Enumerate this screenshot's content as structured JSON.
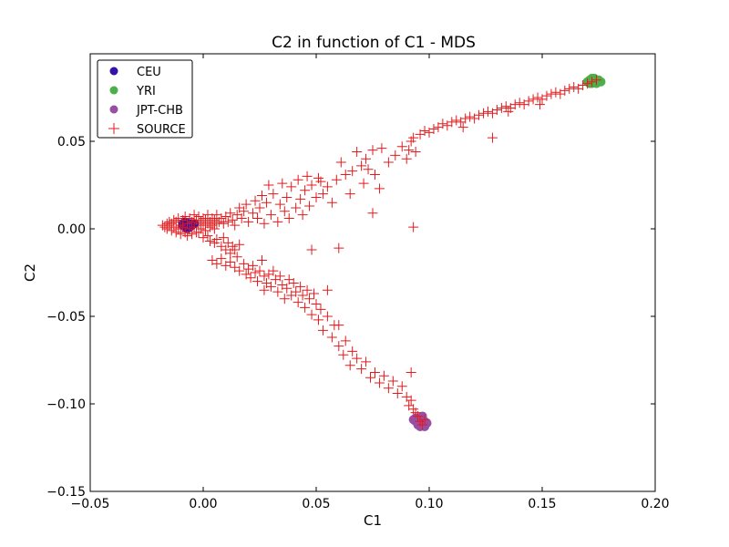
{
  "chart_data": {
    "type": "scatter",
    "title": "C2 in function of C1 - MDS",
    "xlabel": "C1",
    "ylabel": "C2",
    "xlim": [
      -0.05,
      0.2
    ],
    "ylim": [
      -0.15,
      0.1
    ],
    "xticks": [
      -0.05,
      0.0,
      0.05,
      0.1,
      0.15,
      0.2
    ],
    "xtick_labels": [
      "−0.05",
      "0.00",
      "0.05",
      "0.10",
      "0.15",
      "0.20"
    ],
    "yticks": [
      -0.15,
      -0.1,
      -0.05,
      0.0,
      0.05
    ],
    "ytick_labels": [
      "−0.15",
      "−0.10",
      "−0.05",
      "0.00",
      "0.05"
    ],
    "grid": false,
    "legend_position": "top-left",
    "series": [
      {
        "name": "CEU",
        "marker": "circle",
        "color": "#3311aa",
        "points": [
          [
            -0.009,
            0.003
          ],
          [
            -0.008,
            0.001
          ],
          [
            -0.007,
            0.002
          ],
          [
            -0.006,
            0.003
          ],
          [
            -0.008,
            0.004
          ],
          [
            -0.005,
            0.002
          ],
          [
            -0.007,
            0.0
          ],
          [
            -0.004,
            0.003
          ],
          [
            -0.009,
            0.002
          ],
          [
            -0.006,
            0.001
          ]
        ]
      },
      {
        "name": "YRI",
        "marker": "circle",
        "color": "#4daf4a",
        "points": [
          [
            0.17,
            0.084
          ],
          [
            0.171,
            0.085
          ],
          [
            0.172,
            0.083
          ],
          [
            0.173,
            0.086
          ],
          [
            0.174,
            0.084
          ],
          [
            0.175,
            0.085
          ],
          [
            0.176,
            0.084
          ],
          [
            0.172,
            0.086
          ],
          [
            0.174,
            0.083
          ],
          [
            0.173,
            0.085
          ],
          [
            0.171,
            0.083
          ]
        ]
      },
      {
        "name": "JPT-CHB",
        "marker": "circle",
        "color": "#984ea3",
        "points": [
          [
            0.093,
            -0.109
          ],
          [
            0.094,
            -0.11
          ],
          [
            0.095,
            -0.108
          ],
          [
            0.096,
            -0.111
          ],
          [
            0.097,
            -0.109
          ],
          [
            0.098,
            -0.11
          ],
          [
            0.099,
            -0.111
          ],
          [
            0.096,
            -0.113
          ],
          [
            0.098,
            -0.113
          ],
          [
            0.094,
            -0.108
          ],
          [
            0.097,
            -0.107
          ],
          [
            0.095,
            -0.112
          ]
        ]
      },
      {
        "name": "SOURCE",
        "marker": "plus",
        "color": "#e41a1c",
        "points": [
          [
            -0.018,
            0.002
          ],
          [
            -0.017,
            0.001
          ],
          [
            -0.016,
            0.003
          ],
          [
            -0.016,
            0.0
          ],
          [
            -0.015,
            0.002
          ],
          [
            -0.015,
            0.004
          ],
          [
            -0.014,
            -0.001
          ],
          [
            -0.014,
            0.003
          ],
          [
            -0.013,
            0.001
          ],
          [
            -0.013,
            0.005
          ],
          [
            -0.012,
            -0.002
          ],
          [
            -0.012,
            0.004
          ],
          [
            -0.011,
            0.0
          ],
          [
            -0.011,
            0.006
          ],
          [
            -0.01,
            0.002
          ],
          [
            -0.01,
            -0.003
          ],
          [
            -0.009,
            0.005
          ],
          [
            -0.009,
            0.001
          ],
          [
            -0.008,
            -0.002
          ],
          [
            -0.008,
            0.007
          ],
          [
            -0.007,
            0.003
          ],
          [
            -0.007,
            -0.004
          ],
          [
            -0.006,
            0.006
          ],
          [
            -0.006,
            0.0
          ],
          [
            -0.005,
            0.004
          ],
          [
            -0.005,
            -0.003
          ],
          [
            -0.004,
            0.008
          ],
          [
            -0.004,
            0.001
          ],
          [
            -0.003,
            0.005
          ],
          [
            -0.003,
            -0.002
          ],
          [
            -0.002,
            0.003
          ],
          [
            -0.002,
            0.007
          ],
          [
            -0.001,
            0.0
          ],
          [
            -0.001,
            0.004
          ],
          [
            0.0,
            0.006
          ],
          [
            0.0,
            0.002
          ],
          [
            0.001,
            -0.001
          ],
          [
            0.001,
            0.005
          ],
          [
            0.002,
            0.003
          ],
          [
            0.002,
            0.008
          ],
          [
            0.003,
            0.001
          ],
          [
            0.003,
            0.004
          ],
          [
            0.004,
            0.006
          ],
          [
            0.004,
            0.002
          ],
          [
            0.005,
            0.005
          ],
          [
            0.005,
            0.0
          ],
          [
            0.006,
            0.003
          ],
          [
            0.006,
            0.008
          ],
          [
            0.007,
            0.004
          ],
          [
            0.008,
            0.006
          ],
          [
            0.009,
            0.003
          ],
          [
            0.01,
            0.007
          ],
          [
            0.011,
            0.004
          ],
          [
            0.012,
            0.009
          ],
          [
            0.013,
            0.005
          ],
          [
            0.014,
            0.002
          ],
          [
            0.015,
            0.008
          ],
          [
            0.016,
            0.012
          ],
          [
            0.017,
            0.006
          ],
          [
            0.018,
            0.01
          ],
          [
            0.019,
            0.014
          ],
          [
            0.02,
            0.004
          ],
          [
            0.022,
            0.009
          ],
          [
            0.023,
            0.016
          ],
          [
            0.024,
            0.006
          ],
          [
            0.025,
            0.012
          ],
          [
            0.026,
            0.019
          ],
          [
            0.027,
            0.003
          ],
          [
            0.028,
            0.015
          ],
          [
            0.029,
            0.025
          ],
          [
            0.03,
            0.008
          ],
          [
            0.031,
            0.02
          ],
          [
            0.033,
            0.004
          ],
          [
            0.034,
            0.014
          ],
          [
            0.035,
            0.026
          ],
          [
            0.036,
            0.01
          ],
          [
            0.037,
            0.018
          ],
          [
            0.038,
            0.006
          ],
          [
            0.039,
            0.024
          ],
          [
            0.041,
            0.012
          ],
          [
            0.042,
            0.028
          ],
          [
            0.043,
            0.017
          ],
          [
            0.044,
            0.008
          ],
          [
            0.045,
            0.022
          ],
          [
            0.046,
            0.03
          ],
          [
            0.047,
            0.013
          ],
          [
            0.048,
            0.025
          ],
          [
            0.05,
            0.018
          ],
          [
            0.051,
            0.029
          ],
          [
            0.052,
            0.027
          ],
          [
            0.053,
            0.02
          ],
          [
            0.055,
            0.024
          ],
          [
            0.057,
            0.015
          ],
          [
            0.059,
            0.028
          ],
          [
            0.061,
            0.038
          ],
          [
            0.063,
            0.031
          ],
          [
            0.065,
            0.02
          ],
          [
            0.066,
            0.033
          ],
          [
            0.068,
            0.044
          ],
          [
            0.07,
            0.036
          ],
          [
            0.071,
            0.026
          ],
          [
            0.072,
            0.04
          ],
          [
            0.073,
            0.034
          ],
          [
            0.075,
            0.045
          ],
          [
            0.076,
            0.031
          ],
          [
            0.078,
            0.023
          ],
          [
            0.079,
            0.046
          ],
          [
            0.082,
            0.038
          ],
          [
            0.085,
            0.042
          ],
          [
            0.088,
            0.047
          ],
          [
            0.09,
            0.04
          ],
          [
            0.091,
            0.045
          ],
          [
            0.092,
            0.05
          ],
          [
            0.093,
            0.052
          ],
          [
            0.094,
            0.044
          ],
          [
            0.093,
            0.001
          ],
          [
            0.075,
            0.009
          ],
          [
            -0.002,
            -0.002
          ],
          [
            0.0,
            -0.005
          ],
          [
            0.002,
            -0.004
          ],
          [
            0.003,
            -0.007
          ],
          [
            0.005,
            -0.008
          ],
          [
            0.006,
            -0.006
          ],
          [
            0.008,
            -0.01
          ],
          [
            0.009,
            -0.005
          ],
          [
            0.01,
            -0.012
          ],
          [
            0.011,
            -0.008
          ],
          [
            0.012,
            -0.014
          ],
          [
            0.013,
            -0.01
          ],
          [
            0.014,
            -0.012
          ],
          [
            0.015,
            -0.016
          ],
          [
            0.016,
            -0.009
          ],
          [
            0.004,
            -0.018
          ],
          [
            0.006,
            -0.02
          ],
          [
            0.008,
            -0.017
          ],
          [
            0.01,
            -0.021
          ],
          [
            0.012,
            -0.019
          ],
          [
            0.014,
            -0.022
          ],
          [
            0.016,
            -0.024
          ],
          [
            0.018,
            -0.02
          ],
          [
            0.019,
            -0.026
          ],
          [
            0.02,
            -0.023
          ],
          [
            0.021,
            -0.028
          ],
          [
            0.022,
            -0.021
          ],
          [
            0.023,
            -0.025
          ],
          [
            0.024,
            -0.03
          ],
          [
            0.025,
            -0.024
          ],
          [
            0.026,
            -0.018
          ],
          [
            0.027,
            -0.027
          ],
          [
            0.028,
            -0.031
          ],
          [
            0.029,
            -0.026
          ],
          [
            0.03,
            -0.033
          ],
          [
            0.031,
            -0.024
          ],
          [
            0.032,
            -0.029
          ],
          [
            0.033,
            -0.036
          ],
          [
            0.034,
            -0.027
          ],
          [
            0.035,
            -0.032
          ],
          [
            0.036,
            -0.04
          ],
          [
            0.037,
            -0.034
          ],
          [
            0.038,
            -0.029
          ],
          [
            0.039,
            -0.038
          ],
          [
            0.04,
            -0.031
          ],
          [
            0.041,
            -0.036
          ],
          [
            0.042,
            -0.042
          ],
          [
            0.043,
            -0.033
          ],
          [
            0.044,
            -0.038
          ],
          [
            0.045,
            -0.045
          ],
          [
            0.046,
            -0.035
          ],
          [
            0.047,
            -0.04
          ],
          [
            0.048,
            -0.049
          ],
          [
            0.049,
            -0.037
          ],
          [
            0.05,
            -0.043
          ],
          [
            0.051,
            -0.052
          ],
          [
            0.052,
            -0.046
          ],
          [
            0.053,
            -0.058
          ],
          [
            0.055,
            -0.05
          ],
          [
            0.057,
            -0.062
          ],
          [
            0.058,
            -0.055
          ],
          [
            0.06,
            -0.067
          ],
          [
            0.062,
            -0.072
          ],
          [
            0.063,
            -0.064
          ],
          [
            0.065,
            -0.078
          ],
          [
            0.066,
            -0.07
          ],
          [
            0.068,
            -0.074
          ],
          [
            0.07,
            -0.08
          ],
          [
            0.072,
            -0.076
          ],
          [
            0.074,
            -0.085
          ],
          [
            0.076,
            -0.082
          ],
          [
            0.078,
            -0.088
          ],
          [
            0.08,
            -0.084
          ],
          [
            0.082,
            -0.091
          ],
          [
            0.084,
            -0.087
          ],
          [
            0.086,
            -0.094
          ],
          [
            0.088,
            -0.09
          ],
          [
            0.09,
            -0.096
          ],
          [
            0.091,
            -0.101
          ],
          [
            0.092,
            -0.098
          ],
          [
            0.093,
            -0.103
          ],
          [
            0.094,
            -0.105
          ],
          [
            0.092,
            -0.082
          ],
          [
            0.06,
            -0.055
          ],
          [
            0.055,
            -0.035
          ],
          [
            0.048,
            -0.012
          ],
          [
            0.06,
            -0.011
          ],
          [
            0.027,
            -0.035
          ],
          [
            0.095,
            -0.107
          ],
          [
            0.096,
            -0.11
          ],
          [
            0.097,
            -0.112
          ],
          [
            0.098,
            -0.109
          ],
          [
            0.096,
            0.054
          ],
          [
            0.098,
            0.056
          ],
          [
            0.1,
            0.055
          ],
          [
            0.102,
            0.057
          ],
          [
            0.104,
            0.058
          ],
          [
            0.106,
            0.06
          ],
          [
            0.108,
            0.059
          ],
          [
            0.11,
            0.061
          ],
          [
            0.112,
            0.062
          ],
          [
            0.114,
            0.061
          ],
          [
            0.116,
            0.063
          ],
          [
            0.118,
            0.064
          ],
          [
            0.12,
            0.063
          ],
          [
            0.122,
            0.065
          ],
          [
            0.124,
            0.066
          ],
          [
            0.126,
            0.067
          ],
          [
            0.128,
            0.066
          ],
          [
            0.13,
            0.068
          ],
          [
            0.132,
            0.069
          ],
          [
            0.134,
            0.07
          ],
          [
            0.136,
            0.069
          ],
          [
            0.138,
            0.071
          ],
          [
            0.14,
            0.072
          ],
          [
            0.142,
            0.071
          ],
          [
            0.144,
            0.073
          ],
          [
            0.146,
            0.074
          ],
          [
            0.148,
            0.075
          ],
          [
            0.15,
            0.074
          ],
          [
            0.152,
            0.076
          ],
          [
            0.154,
            0.077
          ],
          [
            0.156,
            0.078
          ],
          [
            0.158,
            0.077
          ],
          [
            0.16,
            0.079
          ],
          [
            0.162,
            0.08
          ],
          [
            0.164,
            0.081
          ],
          [
            0.166,
            0.08
          ],
          [
            0.168,
            0.082
          ],
          [
            0.17,
            0.083
          ],
          [
            0.172,
            0.084
          ],
          [
            0.174,
            0.085
          ],
          [
            0.128,
            0.052
          ],
          [
            0.115,
            0.058
          ],
          [
            0.135,
            0.067
          ],
          [
            0.149,
            0.071
          ]
        ]
      }
    ]
  }
}
